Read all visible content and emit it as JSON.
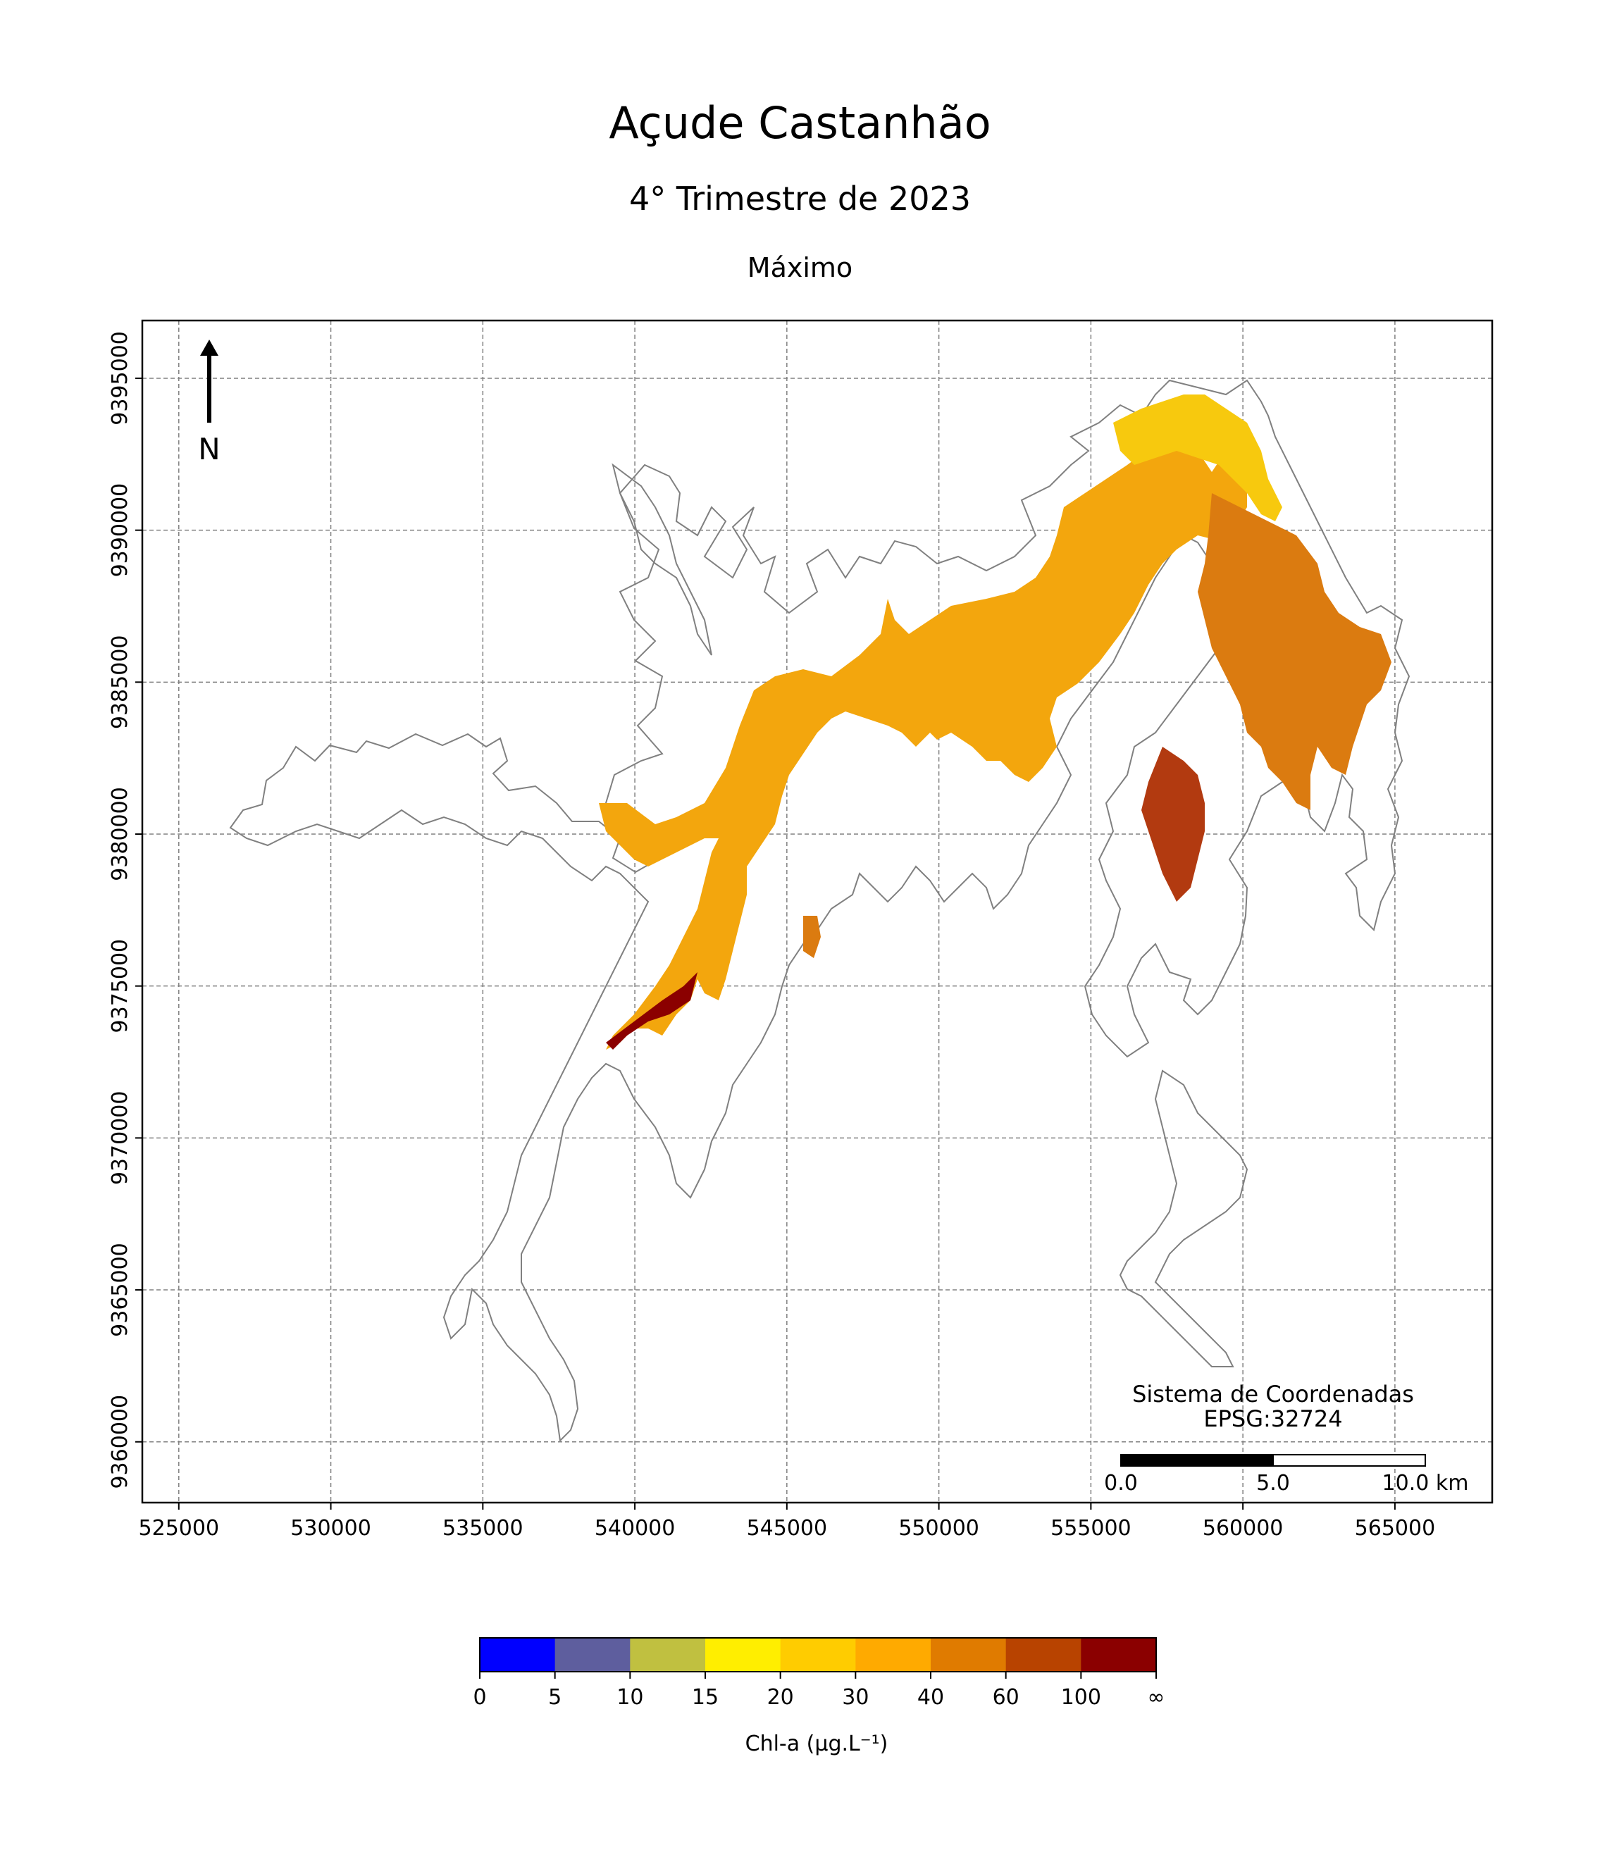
{
  "header": {
    "title": "Açude Castanhão",
    "subtitle": "4° Trimestre de 2023",
    "statistic": "Máximo"
  },
  "map": {
    "x_ticks": [
      "525000",
      "530000",
      "535000",
      "540000",
      "545000",
      "550000",
      "555000",
      "560000",
      "565000"
    ],
    "y_ticks": [
      "9395000",
      "9390000",
      "9385000",
      "9380000",
      "9375000",
      "9370000",
      "9365000",
      "9360000"
    ],
    "x_range": [
      523800,
      568200
    ],
    "y_range": [
      9358000,
      9396900
    ],
    "grid": true,
    "north_arrow_label": "N",
    "crs_label_line1": "Sistema de Coordenadas",
    "crs_label_line2": "EPSG:32724",
    "scale_bar_labels": [
      "0.0",
      "5.0",
      "10.0 km"
    ]
  },
  "colorbar": {
    "label": "Chl-a (μg.L⁻¹)",
    "ticks": [
      "0",
      "5",
      "10",
      "15",
      "20",
      "30",
      "40",
      "60",
      "100",
      "∞"
    ],
    "colors": [
      "#0000ff",
      "#5e5e9e",
      "#c0c040",
      "#ffee00",
      "#ffcc00",
      "#ffaa00",
      "#e07b00",
      "#b84300",
      "#8b0000"
    ]
  },
  "legend_colors": {
    "outline": "#808080",
    "grid": "#808080",
    "water_main": "#f3a60d",
    "water_yellow": "#f7c90e",
    "water_orange": "#db7b10",
    "water_red": "#b23a10"
  }
}
